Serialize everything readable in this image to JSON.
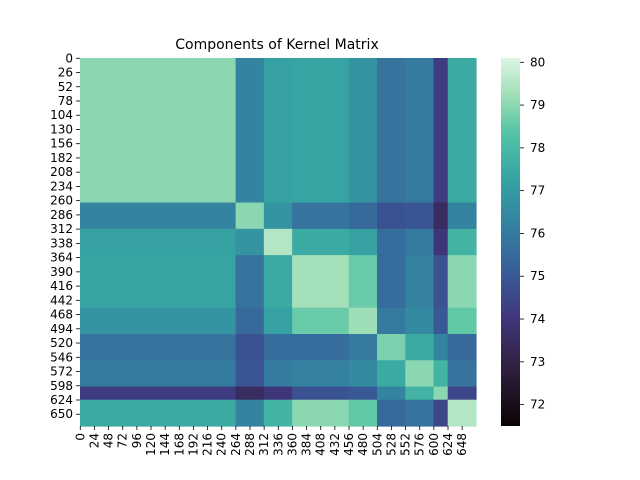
{
  "chart_data": {
    "type": "heatmap",
    "title": "Components of Kernel Matrix",
    "xlabel": "",
    "ylabel": "",
    "n": 672,
    "x_tick_labels": [
      "0",
      "24",
      "48",
      "72",
      "96",
      "120",
      "144",
      "168",
      "192",
      "216",
      "240",
      "264",
      "288",
      "312",
      "336",
      "360",
      "384",
      "408",
      "432",
      "456",
      "480",
      "504",
      "528",
      "552",
      "576",
      "600",
      "624",
      "648"
    ],
    "y_tick_labels": [
      "0",
      "26",
      "52",
      "78",
      "104",
      "130",
      "156",
      "182",
      "208",
      "234",
      "260",
      "286",
      "312",
      "338",
      "364",
      "390",
      "416",
      "442",
      "468",
      "494",
      "520",
      "546",
      "572",
      "598",
      "624",
      "650"
    ],
    "colorbar": {
      "vmin": 71.5,
      "vmax": 80.1,
      "ticks": [
        "72",
        "73",
        "74",
        "75",
        "76",
        "77",
        "78",
        "79",
        "80"
      ],
      "colormap": "mako"
    },
    "block_edges": [
      0,
      264,
      312,
      360,
      456,
      504,
      552,
      600,
      624,
      672
    ],
    "block_values": [
      [
        79.0,
        76.3,
        77.2,
        77.3,
        76.8,
        75.8,
        76.0,
        74.2,
        77.5
      ],
      [
        76.3,
        79.0,
        76.8,
        75.8,
        75.5,
        74.8,
        74.9,
        73.5,
        76.3
      ],
      [
        77.2,
        76.8,
        79.5,
        77.5,
        77.2,
        75.6,
        76.0,
        74.0,
        77.8
      ],
      [
        77.3,
        75.8,
        77.5,
        79.3,
        78.6,
        75.6,
        76.2,
        74.8,
        79.0
      ],
      [
        76.8,
        75.5,
        77.2,
        78.6,
        79.2,
        76.0,
        76.5,
        75.0,
        78.5
      ],
      [
        75.8,
        74.8,
        75.6,
        75.6,
        76.0,
        78.8,
        77.5,
        76.3,
        75.5
      ],
      [
        76.0,
        74.9,
        76.0,
        76.2,
        76.5,
        77.5,
        79.0,
        77.8,
        75.8
      ],
      [
        74.2,
        73.5,
        74.0,
        74.8,
        75.0,
        76.3,
        77.8,
        79.0,
        74.5
      ],
      [
        77.5,
        76.3,
        77.8,
        79.0,
        78.5,
        75.5,
        75.8,
        74.5,
        79.5
      ]
    ]
  }
}
